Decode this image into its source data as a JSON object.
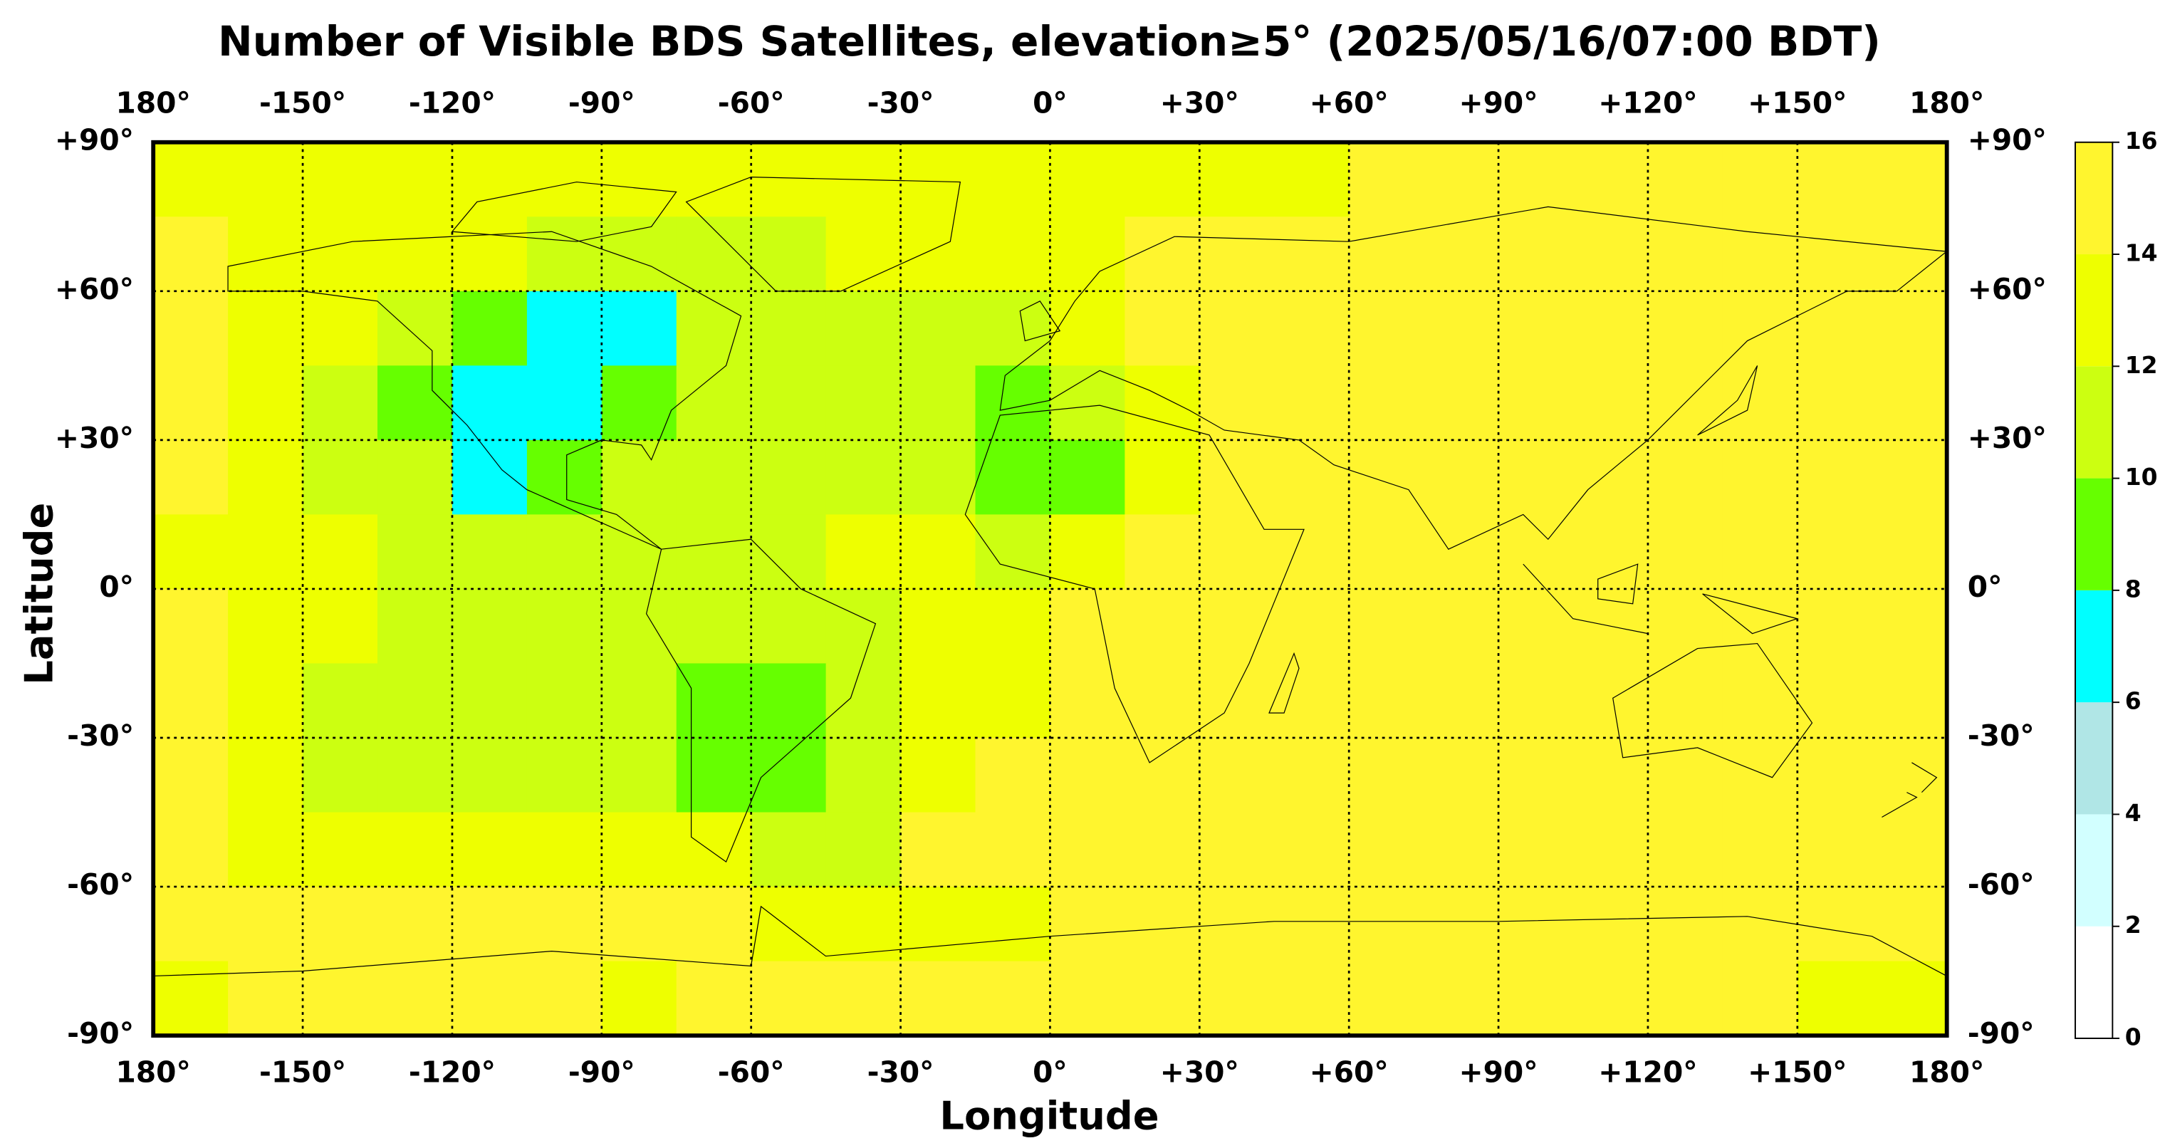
{
  "chart_data": {
    "type": "heatmap",
    "title": "Number of Visible BDS Satellites, elevation≥5° (2025/05/16/07:00 BDT)",
    "x_label": "Longitude",
    "y_label": "Latitude",
    "xlim": [
      -180,
      180
    ],
    "ylim": [
      -90,
      90
    ],
    "xticks": [
      {
        "value": -180,
        "label": "180°"
      },
      {
        "value": -150,
        "label": "-150°"
      },
      {
        "value": -120,
        "label": "-120°"
      },
      {
        "value": -90,
        "label": "-90°"
      },
      {
        "value": -60,
        "label": "-60°"
      },
      {
        "value": -30,
        "label": "-30°"
      },
      {
        "value": 0,
        "label": "0°"
      },
      {
        "value": 30,
        "label": "+30°"
      },
      {
        "value": 60,
        "label": "+60°"
      },
      {
        "value": 90,
        "label": "+90°"
      },
      {
        "value": 120,
        "label": "+120°"
      },
      {
        "value": 150,
        "label": "+150°"
      },
      {
        "value": 180,
        "label": "180°"
      }
    ],
    "yticks": [
      {
        "value": 90,
        "label": "+90°"
      },
      {
        "value": 60,
        "label": "+60°"
      },
      {
        "value": 30,
        "label": "+30°"
      },
      {
        "value": 0,
        "label": "0°"
      },
      {
        "value": -30,
        "label": "-30°"
      },
      {
        "value": -60,
        "label": "-60°"
      },
      {
        "value": -90,
        "label": "-90°"
      }
    ],
    "grid": true,
    "lon_edges": [
      -180,
      -165,
      -150,
      -135,
      -120,
      -105,
      -90,
      -75,
      -60,
      -45,
      -30,
      -15,
      0,
      15,
      30,
      45,
      60,
      75,
      90,
      105,
      120,
      135,
      150,
      165,
      180
    ],
    "lat_edges": [
      90,
      75,
      60,
      45,
      30,
      15,
      0,
      -15,
      -30,
      -45,
      -60,
      -75,
      -90
    ],
    "values": [
      [
        13,
        13,
        13,
        13,
        13,
        13,
        13,
        13,
        13,
        13,
        13,
        13,
        13,
        13,
        13,
        13,
        15,
        15,
        15,
        15,
        15,
        15,
        15,
        15
      ],
      [
        15,
        13,
        13,
        13,
        13,
        11,
        11,
        11,
        11,
        13,
        13,
        13,
        13,
        15,
        15,
        15,
        15,
        15,
        15,
        15,
        15,
        15,
        15,
        15
      ],
      [
        15,
        13,
        13,
        11,
        9,
        7,
        7,
        11,
        11,
        11,
        11,
        11,
        13,
        15,
        15,
        15,
        15,
        15,
        15,
        15,
        15,
        15,
        15,
        15
      ],
      [
        15,
        13,
        11,
        9,
        7,
        7,
        9,
        11,
        11,
        11,
        11,
        9,
        11,
        13,
        15,
        15,
        15,
        15,
        15,
        15,
        15,
        15,
        15,
        15
      ],
      [
        15,
        13,
        11,
        11,
        7,
        9,
        11,
        11,
        11,
        11,
        11,
        9,
        9,
        13,
        15,
        15,
        15,
        15,
        15,
        15,
        15,
        15,
        15,
        15
      ],
      [
        13,
        13,
        13,
        11,
        11,
        11,
        11,
        11,
        11,
        13,
        13,
        11,
        13,
        15,
        15,
        15,
        15,
        15,
        15,
        15,
        15,
        15,
        15,
        15
      ],
      [
        15,
        13,
        13,
        11,
        11,
        11,
        11,
        11,
        11,
        11,
        13,
        13,
        15,
        15,
        15,
        15,
        15,
        15,
        15,
        15,
        15,
        15,
        15,
        15
      ],
      [
        15,
        13,
        11,
        11,
        11,
        11,
        11,
        9,
        9,
        11,
        13,
        13,
        15,
        15,
        15,
        15,
        15,
        15,
        15,
        15,
        15,
        15,
        15,
        15
      ],
      [
        15,
        13,
        11,
        11,
        11,
        11,
        11,
        9,
        9,
        11,
        13,
        15,
        15,
        15,
        15,
        15,
        15,
        15,
        15,
        15,
        15,
        15,
        15,
        15
      ],
      [
        15,
        13,
        13,
        13,
        13,
        13,
        13,
        13,
        11,
        11,
        15,
        15,
        15,
        15,
        15,
        15,
        15,
        15,
        15,
        15,
        15,
        15,
        15,
        15
      ],
      [
        15,
        15,
        15,
        15,
        15,
        15,
        15,
        15,
        13,
        13,
        13,
        13,
        15,
        15,
        15,
        15,
        15,
        15,
        15,
        15,
        15,
        15,
        15,
        15
      ],
      [
        13,
        15,
        15,
        15,
        15,
        15,
        13,
        15,
        15,
        15,
        15,
        15,
        15,
        15,
        15,
        15,
        15,
        15,
        15,
        15,
        15,
        15,
        13,
        13
      ]
    ],
    "colorbar": {
      "levels": [
        0,
        2,
        4,
        6,
        8,
        10,
        12,
        14,
        16
      ],
      "colors": [
        "#ffffff",
        "#d2ffff",
        "#b0e6e6",
        "#00ffff",
        "#66ff00",
        "#ccff11",
        "#eeff00",
        "#fff52e"
      ]
    }
  }
}
